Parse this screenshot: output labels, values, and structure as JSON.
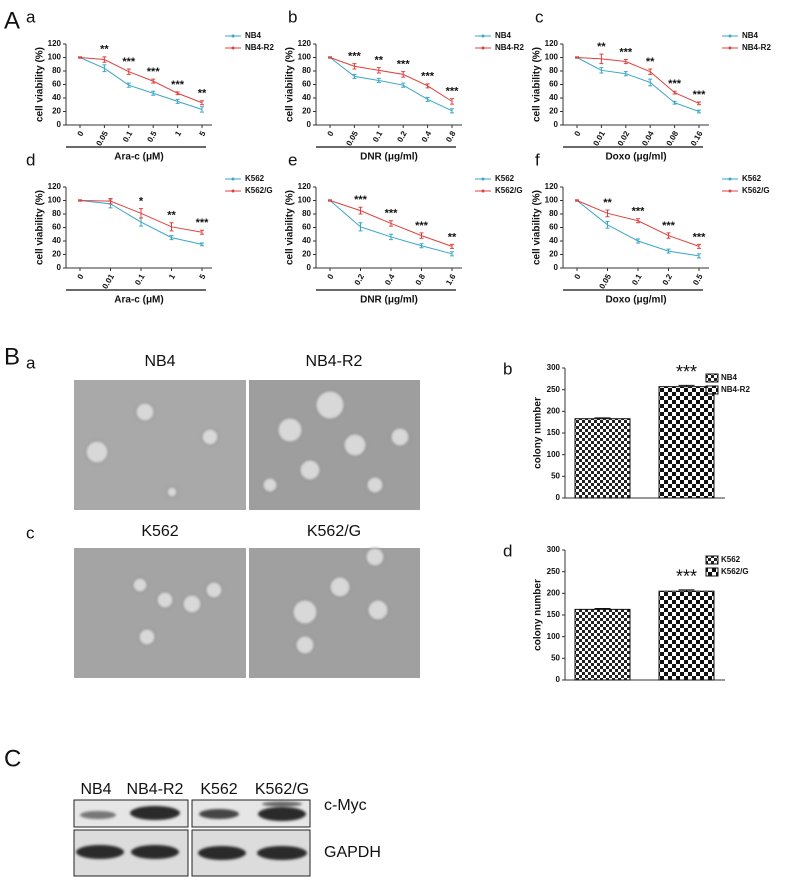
{
  "sections": [
    "A",
    "B",
    "C"
  ],
  "chart_data": [
    {
      "type": "line",
      "panel": "a",
      "categories": [
        "0",
        "0.05",
        "0.1",
        "0.5",
        "1",
        "5"
      ],
      "x_label": "Ara-c (μM)",
      "y_label": "cell viability (%)",
      "ylim": [
        0,
        120
      ],
      "yticks": [
        0,
        20,
        40,
        60,
        80,
        100,
        120
      ],
      "series": [
        {
          "name": "NB4",
          "color": "#3aa6c8",
          "values": [
            100,
            84,
            59,
            47,
            35,
            23
          ],
          "errors": [
            1,
            5,
            3,
            3,
            3,
            4
          ]
        },
        {
          "name": "NB4-R2",
          "color": "#e0403c",
          "values": [
            100,
            97,
            79,
            65,
            47,
            33
          ],
          "errors": [
            1,
            4,
            4,
            3,
            2,
            3
          ]
        }
      ],
      "annotations": [
        null,
        "**",
        "***",
        "***",
        "***",
        "**"
      ]
    },
    {
      "type": "line",
      "panel": "b",
      "categories": [
        "0",
        "0.05",
        "0.1",
        "0.2",
        "0.4",
        "0.8"
      ],
      "x_label": "DNR (μg/ml)",
      "y_label": "cell viability (%)",
      "ylim": [
        0,
        120
      ],
      "yticks": [
        0,
        20,
        40,
        60,
        80,
        100,
        120
      ],
      "series": [
        {
          "name": "NB4",
          "color": "#3aa6c8",
          "values": [
            100,
            72,
            66,
            59,
            38,
            21
          ],
          "errors": [
            1,
            3,
            3,
            3,
            3,
            3
          ]
        },
        {
          "name": "NB4-R2",
          "color": "#e0403c",
          "values": [
            100,
            87,
            81,
            75,
            58,
            35
          ],
          "errors": [
            1,
            4,
            4,
            4,
            3,
            4
          ]
        }
      ],
      "annotations": [
        null,
        "***",
        "**",
        "***",
        "***",
        "***"
      ]
    },
    {
      "type": "line",
      "panel": "c",
      "categories": [
        "0",
        "0.01",
        "0.02",
        "0.04",
        "0.08",
        "0.16"
      ],
      "x_label": "Doxo (μg/ml)",
      "y_label": "cell viability (%)",
      "ylim": [
        0,
        120
      ],
      "yticks": [
        0,
        20,
        40,
        60,
        80,
        100,
        120
      ],
      "series": [
        {
          "name": "NB4",
          "color": "#3aa6c8",
          "values": [
            100,
            81,
            76,
            63,
            33,
            20
          ],
          "errors": [
            1,
            4,
            3,
            5,
            2,
            2
          ]
        },
        {
          "name": "NB4-R2",
          "color": "#e0403c",
          "values": [
            100,
            98,
            94,
            79,
            48,
            32
          ],
          "errors": [
            1,
            7,
            3,
            4,
            2,
            2
          ]
        }
      ],
      "annotations": [
        null,
        "**",
        "***",
        "**",
        "***",
        "***"
      ]
    },
    {
      "type": "line",
      "panel": "d",
      "categories": [
        "0",
        "0.01",
        "0.1",
        "1",
        "5"
      ],
      "x_label": "Ara-c (μM)",
      "y_label": "cell viability (%)",
      "ylim": [
        0,
        120
      ],
      "yticks": [
        0,
        20,
        40,
        60,
        80,
        100,
        120
      ],
      "series": [
        {
          "name": "K562",
          "color": "#3aa6c8",
          "values": [
            100,
            95,
            68,
            45,
            35
          ],
          "errors": [
            1,
            6,
            6,
            3,
            2
          ]
        },
        {
          "name": "K562/G",
          "color": "#e0403c",
          "values": [
            100,
            99,
            81,
            61,
            53
          ],
          "errors": [
            1,
            4,
            7,
            6,
            3
          ]
        }
      ],
      "annotations": [
        null,
        null,
        "*",
        "**",
        "***"
      ]
    },
    {
      "type": "line",
      "panel": "e",
      "categories": [
        "0",
        "0.2",
        "0.4",
        "0.8",
        "1.6"
      ],
      "x_label": "DNR (μg/ml)",
      "y_label": "cell viability (%)",
      "ylim": [
        0,
        120
      ],
      "yticks": [
        0,
        20,
        40,
        60,
        80,
        100,
        120
      ],
      "series": [
        {
          "name": "K562",
          "color": "#3aa6c8",
          "values": [
            100,
            61,
            46,
            33,
            21
          ],
          "errors": [
            1,
            6,
            4,
            3,
            3
          ]
        },
        {
          "name": "K562/G",
          "color": "#e0403c",
          "values": [
            100,
            85,
            66,
            48,
            32
          ],
          "errors": [
            1,
            5,
            4,
            4,
            3
          ]
        }
      ],
      "annotations": [
        null,
        "***",
        "***",
        "***",
        "**"
      ]
    },
    {
      "type": "line",
      "panel": "f",
      "categories": [
        "0",
        "0.05",
        "0.1",
        "0.2",
        "0.5"
      ],
      "x_label": "Doxo (μg/ml)",
      "y_label": "cell viability (%)",
      "ylim": [
        0,
        120
      ],
      "yticks": [
        0,
        20,
        40,
        60,
        80,
        100,
        120
      ],
      "series": [
        {
          "name": "K562",
          "color": "#3aa6c8",
          "values": [
            100,
            64,
            40,
            25,
            18
          ],
          "errors": [
            1,
            5,
            3,
            3,
            3
          ]
        },
        {
          "name": "K562/G",
          "color": "#e0403c",
          "values": [
            100,
            81,
            70,
            48,
            32
          ],
          "errors": [
            1,
            5,
            3,
            4,
            3
          ]
        }
      ],
      "annotations": [
        null,
        "**",
        "***",
        "***",
        "***"
      ]
    },
    {
      "type": "bar",
      "panel": "b",
      "categories": [
        "NB4",
        "NB4-R2"
      ],
      "values": [
        183,
        257
      ],
      "errors": [
        2,
        3
      ],
      "y_label": "colony number",
      "ylim": [
        0,
        300
      ],
      "yticks": [
        0,
        50,
        100,
        150,
        200,
        250,
        300
      ],
      "annotations": [
        null,
        "***"
      ]
    },
    {
      "type": "bar",
      "panel": "d",
      "categories": [
        "K562",
        "K562/G"
      ],
      "values": [
        163,
        205
      ],
      "errors": [
        2,
        3
      ],
      "y_label": "colony number",
      "ylim": [
        0,
        300
      ],
      "yticks": [
        0,
        50,
        100,
        150,
        200,
        250,
        300
      ],
      "annotations": [
        null,
        "***"
      ]
    }
  ],
  "micrographs": [
    {
      "panel": "a",
      "titles": [
        "NB4",
        "NB4-R2"
      ]
    },
    {
      "panel": "c",
      "titles": [
        "K562",
        "K562/G"
      ]
    }
  ],
  "western_blot": {
    "columns": [
      "NB4",
      "NB4-R2",
      "K562",
      "K562/G"
    ],
    "rows": [
      "c-Myc",
      "GAPDH"
    ]
  }
}
